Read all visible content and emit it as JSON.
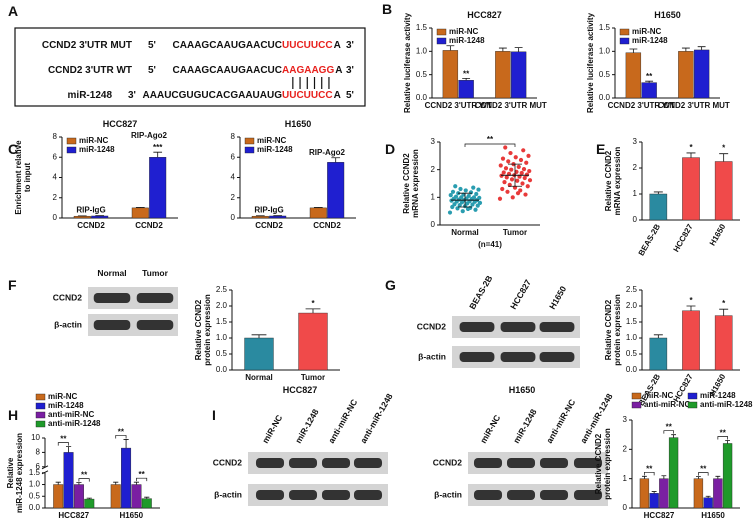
{
  "panel_labels": [
    "A",
    "B",
    "C",
    "D",
    "E",
    "F",
    "G",
    "H",
    "I"
  ],
  "sequence_panel": {
    "rows": [
      {
        "label": "CCND2 3'UTR MUT",
        "left": "5'",
        "seq": "CAAAGCAAUGAACUC",
        "site": "UUCUUCC",
        "tail": "A",
        "right": "3'"
      },
      {
        "label": "CCND2 3'UTR WT",
        "left": "5'",
        "seq": "CAAAGCAAUGAACUC",
        "site": "AAGAAGG",
        "tail": "A",
        "right": "3'"
      },
      {
        "label": "miR-1248",
        "left": "3'",
        "seq": "AAAUCGUGUCACGAAUAUG",
        "site": "UUCUUCC",
        "tail": "A",
        "right": "5'"
      }
    ]
  },
  "blots": [
    {
      "lanes": [
        "Normal",
        "Tumor"
      ],
      "rows": [
        "CCND2",
        "β-actin"
      ]
    },
    {
      "lanes": [
        "BEAS-2B",
        "HCC827",
        "H1650"
      ],
      "rows": [
        "CCND2",
        "β-actin"
      ]
    },
    {
      "title": "HCC827",
      "lanes": [
        "miR-NC",
        "miR-1248",
        "anti-miR-NC",
        "anti-miR-1248"
      ],
      "rows": [
        "CCND2",
        "β-actin"
      ]
    },
    {
      "title": "H1650",
      "lanes": [
        "miR-NC",
        "miR-1248",
        "anti-miR-NC",
        "anti-miR-1248"
      ],
      "rows": [
        "CCND2",
        "β-actin"
      ]
    }
  ],
  "chart_data": [
    {
      "type": "bar",
      "title": "HCC827",
      "ylabel": "Relative luciferase activity",
      "categories": [
        "CCND2 3'UTR WT",
        "CCND2 3'UTR MUT"
      ],
      "series": [
        {
          "name": "miR-NC",
          "color": "#c8691c",
          "values": [
            1.02,
            1.0
          ],
          "errors": [
            0.1,
            0.07
          ]
        },
        {
          "name": "miR-1248",
          "color": "#1f1fd0",
          "values": [
            0.38,
            0.99
          ],
          "errors": [
            0.04,
            0.09
          ]
        }
      ],
      "ylim": [
        0,
        1.5
      ],
      "yticks": [
        {
          "value": 0,
          "label": "0.0"
        },
        0.5,
        {
          "value": 1,
          "label": "1.0"
        },
        1.5
      ],
      "legend": "top-left",
      "annotations": [
        {
          "text": "**",
          "category": 0,
          "series": 1
        }
      ]
    },
    {
      "type": "bar",
      "title": "H1650",
      "ylabel": "Relative luciferase activity",
      "categories": [
        "CCND2 3'UTR WT",
        "CCND2 3'UTR MUT"
      ],
      "series": [
        {
          "name": "miR-NC",
          "color": "#c8691c",
          "values": [
            0.97,
            1.0
          ],
          "errors": [
            0.08,
            0.07
          ]
        },
        {
          "name": "miR-1248",
          "color": "#1f1fd0",
          "values": [
            0.33,
            1.03
          ],
          "errors": [
            0.03,
            0.07
          ]
        }
      ],
      "ylim": [
        0,
        1.5
      ],
      "yticks": [
        {
          "value": 0,
          "label": "0.0"
        },
        0.5,
        {
          "value": 1,
          "label": "1.0"
        },
        1.5
      ],
      "legend": "top-left",
      "annotations": [
        {
          "text": "**",
          "category": 0,
          "series": 1
        }
      ]
    },
    {
      "type": "bar",
      "title": "HCC827",
      "ylabel": [
        "Enrichment relative",
        "to input"
      ],
      "categories": [
        "CCND2",
        "CCND2"
      ],
      "series": [
        {
          "name": "miR-NC",
          "color": "#c8691c",
          "values": [
            0.18,
            1.0
          ],
          "errors": [
            0.03,
            0.05
          ]
        },
        {
          "name": "miR-1248",
          "color": "#1f1fd0",
          "values": [
            0.2,
            6.0
          ],
          "errors": [
            0.03,
            0.5
          ]
        }
      ],
      "ylim": [
        0,
        8
      ],
      "yticks": [
        0,
        2,
        4,
        6,
        8
      ],
      "legend": "top-left",
      "annotations": [
        {
          "text": "RIP-IgG",
          "category": 0
        },
        {
          "text": "RIP-Ago2",
          "category": 1
        },
        {
          "text": "***",
          "category": 1,
          "series": 1
        }
      ]
    },
    {
      "type": "bar",
      "title": "H1650",
      "categories": [
        "CCND2",
        "CCND2"
      ],
      "series": [
        {
          "name": "miR-NC",
          "color": "#c8691c",
          "values": [
            0.18,
            1.0
          ],
          "errors": [
            0.04,
            0.05
          ]
        },
        {
          "name": "miR-1248",
          "color": "#1f1fd0",
          "values": [
            0.2,
            5.5
          ],
          "errors": [
            0.03,
            0.45
          ]
        }
      ],
      "ylim": [
        0,
        8
      ],
      "yticks": [
        0,
        2,
        4,
        6,
        8
      ],
      "legend": "top-left",
      "annotations": [
        {
          "text": "RIP-IgG",
          "category": 0
        },
        {
          "text": "RIP-Ago2",
          "category": 1
        }
      ]
    },
    {
      "type": "strip",
      "ylabel": [
        "Relative CCND2",
        "mRNA expression"
      ],
      "note": "(n=41)",
      "categories": [
        "Normal",
        "Tumor"
      ],
      "groups": [
        {
          "color": "#2a9db0",
          "mean": 0.9,
          "sd": 0.25,
          "values": [
            0.45,
            0.5,
            0.55,
            0.6,
            0.62,
            0.65,
            0.68,
            0.7,
            0.72,
            0.74,
            0.75,
            0.78,
            0.8,
            0.82,
            0.84,
            0.85,
            0.86,
            0.88,
            0.9,
            0.9,
            0.92,
            0.94,
            0.95,
            0.96,
            0.98,
            1.0,
            1.0,
            1.02,
            1.05,
            1.08,
            1.1,
            1.12,
            1.15,
            1.18,
            1.2,
            1.25,
            1.28,
            1.3,
            1.35,
            1.4,
            0.58
          ]
        },
        {
          "color": "#e83a3a",
          "mean": 1.8,
          "sd": 0.4,
          "values": [
            0.95,
            1.0,
            1.1,
            1.2,
            1.25,
            1.3,
            1.35,
            1.4,
            1.45,
            1.5,
            1.55,
            1.6,
            1.62,
            1.65,
            1.7,
            1.72,
            1.75,
            1.78,
            1.8,
            1.82,
            1.85,
            1.88,
            1.9,
            1.92,
            1.95,
            2.0,
            2.02,
            2.05,
            2.1,
            2.15,
            2.2,
            2.25,
            2.3,
            2.35,
            2.4,
            2.45,
            2.5,
            2.6,
            2.7,
            2.8,
            1.15
          ]
        }
      ],
      "ylim": [
        0,
        3
      ],
      "yticks": [
        0,
        1,
        2,
        3
      ],
      "annotations": [
        {
          "text": "**",
          "between_categories": [
            0,
            1
          ]
        }
      ]
    },
    {
      "type": "bar",
      "ylabel": [
        "Relative CCND2",
        "mRNA expression"
      ],
      "categories": [
        "BEAS-2B",
        "HCC827",
        "H1650"
      ],
      "values": [
        1.0,
        2.4,
        2.25
      ],
      "errors": [
        0.08,
        0.18,
        0.3
      ],
      "colors": [
        "#2a8aa0",
        "#f04a4a",
        "#f04a4a"
      ],
      "ylim": [
        0,
        3
      ],
      "yticks": [
        0,
        1,
        2,
        3
      ],
      "annotations": [
        {
          "text": "*",
          "category": 1
        },
        {
          "text": "*",
          "category": 2
        }
      ]
    },
    {
      "type": "bar",
      "ylabel": [
        "Relative CCND2",
        "protein expression"
      ],
      "categories": [
        "Normal",
        "Tumor"
      ],
      "values": [
        1.0,
        1.78
      ],
      "errors": [
        0.1,
        0.13
      ],
      "colors": [
        "#2a8aa0",
        "#f04a4a"
      ],
      "ylim": [
        0,
        2.5
      ],
      "yticks": [
        {
          "value": 0,
          "label": "0.0"
        },
        0.5,
        {
          "value": 1,
          "label": "1.0"
        },
        1.5,
        {
          "value": 2,
          "label": "2.0"
        },
        2.5
      ],
      "annotations": [
        {
          "text": "*",
          "category": 1
        }
      ]
    },
    {
      "type": "bar",
      "ylabel": [
        "Relative CCND2",
        "protein expression"
      ],
      "categories": [
        "BEAS-2B",
        "HCC827",
        "H1650"
      ],
      "values": [
        1.0,
        1.85,
        1.7
      ],
      "errors": [
        0.1,
        0.15,
        0.2
      ],
      "colors": [
        "#2a8aa0",
        "#f04a4a",
        "#f04a4a"
      ],
      "ylim": [
        0,
        2.5
      ],
      "yticks": [
        {
          "value": 0,
          "label": "0.0"
        },
        0.5,
        {
          "value": 1,
          "label": "1.0"
        },
        1.5,
        {
          "value": 2,
          "label": "2.0"
        },
        2.5
      ],
      "annotations": [
        {
          "text": "*",
          "category": 1
        },
        {
          "text": "*",
          "category": 2
        }
      ]
    },
    {
      "type": "bar",
      "ylabel": [
        "Relative",
        "miR-1248 expression"
      ],
      "categories": [
        "HCC827",
        "H1650"
      ],
      "series": [
        {
          "name": "miR-NC",
          "color": "#c8691c",
          "values": [
            1.0,
            1.0
          ],
          "errors": [
            0.1,
            0.1
          ]
        },
        {
          "name": "miR-1248",
          "color": "#1f1fd0",
          "values": [
            8.0,
            8.6
          ],
          "errors": [
            0.8,
            1.2
          ]
        },
        {
          "name": "anti-miR-NC",
          "color": "#7a1fa2",
          "values": [
            1.0,
            1.0
          ],
          "errors": [
            0.08,
            0.1
          ]
        },
        {
          "name": "anti-miR-1248",
          "color": "#1f9a2a",
          "values": [
            0.38,
            0.4
          ],
          "errors": [
            0.04,
            0.06
          ]
        }
      ],
      "ylim": [
        0,
        10
      ],
      "axis_break": [
        1.5,
        6
      ],
      "yticks": [
        {
          "value": 0,
          "label": "0.0"
        },
        0.5,
        {
          "value": 1,
          "label": "1.0"
        },
        1.5,
        6,
        8,
        10
      ],
      "legend": "top-left",
      "annotations": [
        {
          "text": "**",
          "category": 0,
          "between": [
            0,
            1
          ]
        },
        {
          "text": "**",
          "category": 0,
          "between": [
            2,
            3
          ]
        },
        {
          "text": "**",
          "category": 1,
          "between": [
            0,
            1
          ]
        },
        {
          "text": "**",
          "category": 1,
          "between": [
            2,
            3
          ]
        }
      ]
    },
    {
      "type": "bar",
      "ylabel": [
        "Relative CCND2",
        "protein expression"
      ],
      "categories": [
        "HCC827",
        "H1650"
      ],
      "series": [
        {
          "name": "miR-NC",
          "color": "#c8691c",
          "values": [
            1.0,
            1.0
          ],
          "errors": [
            0.08,
            0.07
          ]
        },
        {
          "name": "miR-1248",
          "color": "#1f1fd0",
          "values": [
            0.5,
            0.35
          ],
          "errors": [
            0.06,
            0.05
          ]
        },
        {
          "name": "anti-miR-NC",
          "color": "#7a1fa2",
          "values": [
            1.0,
            1.0
          ],
          "errors": [
            0.1,
            0.08
          ]
        },
        {
          "name": "anti-miR-1248",
          "color": "#1f9a2a",
          "values": [
            2.4,
            2.2
          ],
          "errors": [
            0.1,
            0.1
          ]
        }
      ],
      "ylim": [
        0,
        3
      ],
      "yticks": [
        0,
        1,
        2,
        3
      ],
      "legend": "top",
      "annotations": [
        {
          "text": "**",
          "category": 0,
          "between": [
            0,
            1
          ]
        },
        {
          "text": "**",
          "category": 0,
          "between": [
            2,
            3
          ]
        },
        {
          "text": "**",
          "category": 1,
          "between": [
            0,
            1
          ]
        },
        {
          "text": "**",
          "category": 1,
          "between": [
            2,
            3
          ]
        }
      ]
    }
  ]
}
